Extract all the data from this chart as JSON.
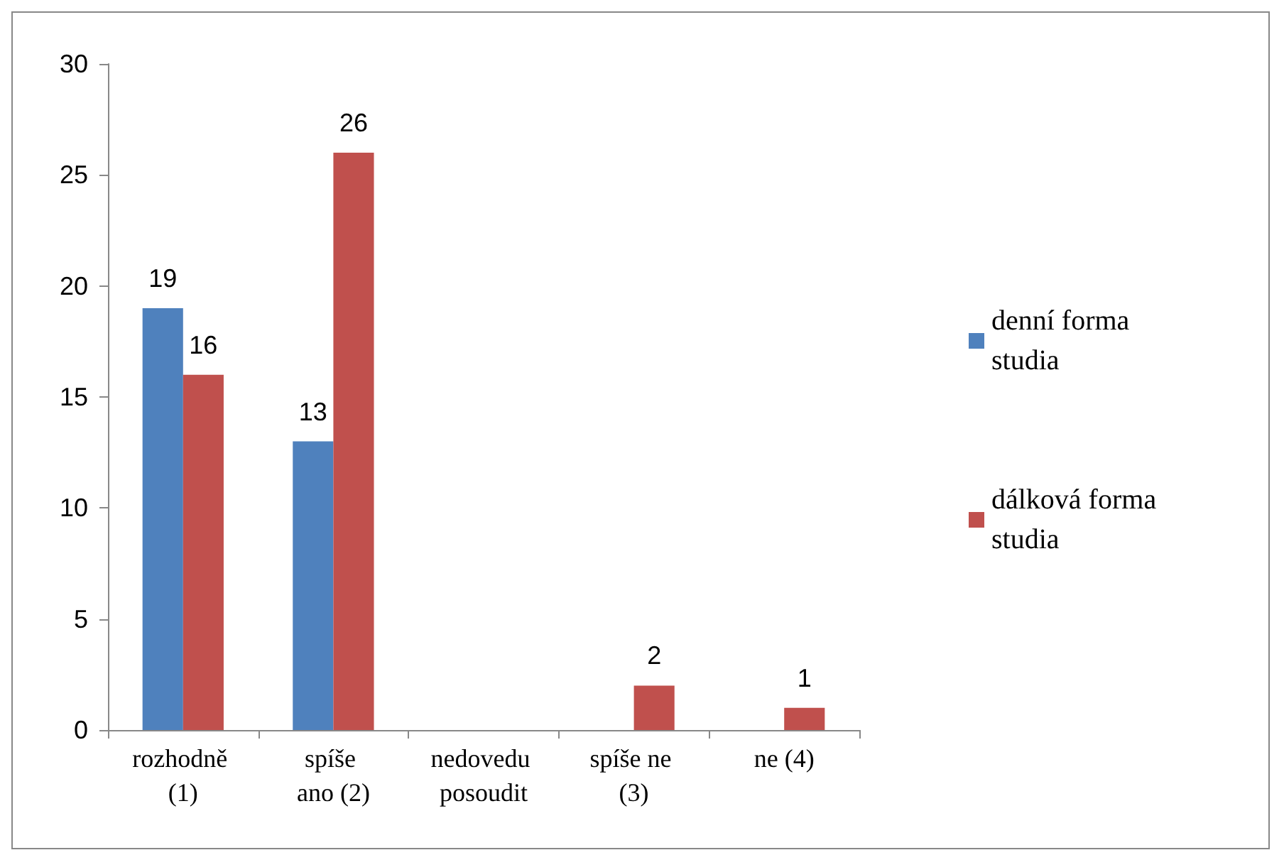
{
  "chart_data": {
    "type": "bar",
    "categories": [
      "rozhodně (1)",
      "spíše ano (2)",
      "nedovedu posoudit",
      "spíše ne (3)",
      "ne (4)"
    ],
    "series": [
      {
        "name": "denní forma studia",
        "color": "#4f81bd",
        "values": [
          19,
          13,
          0,
          0,
          0
        ],
        "value_labels": [
          "19",
          "13",
          null,
          null,
          null
        ]
      },
      {
        "name": "dálková forma studia",
        "color": "#c0504d",
        "values": [
          16,
          26,
          0,
          2,
          1
        ],
        "value_labels": [
          "16",
          "26",
          null,
          "2",
          "1"
        ]
      }
    ],
    "ylim": [
      0,
      30
    ],
    "yticks": [
      0,
      5,
      10,
      15,
      20,
      25,
      30
    ],
    "grid": false,
    "legend": "right"
  }
}
